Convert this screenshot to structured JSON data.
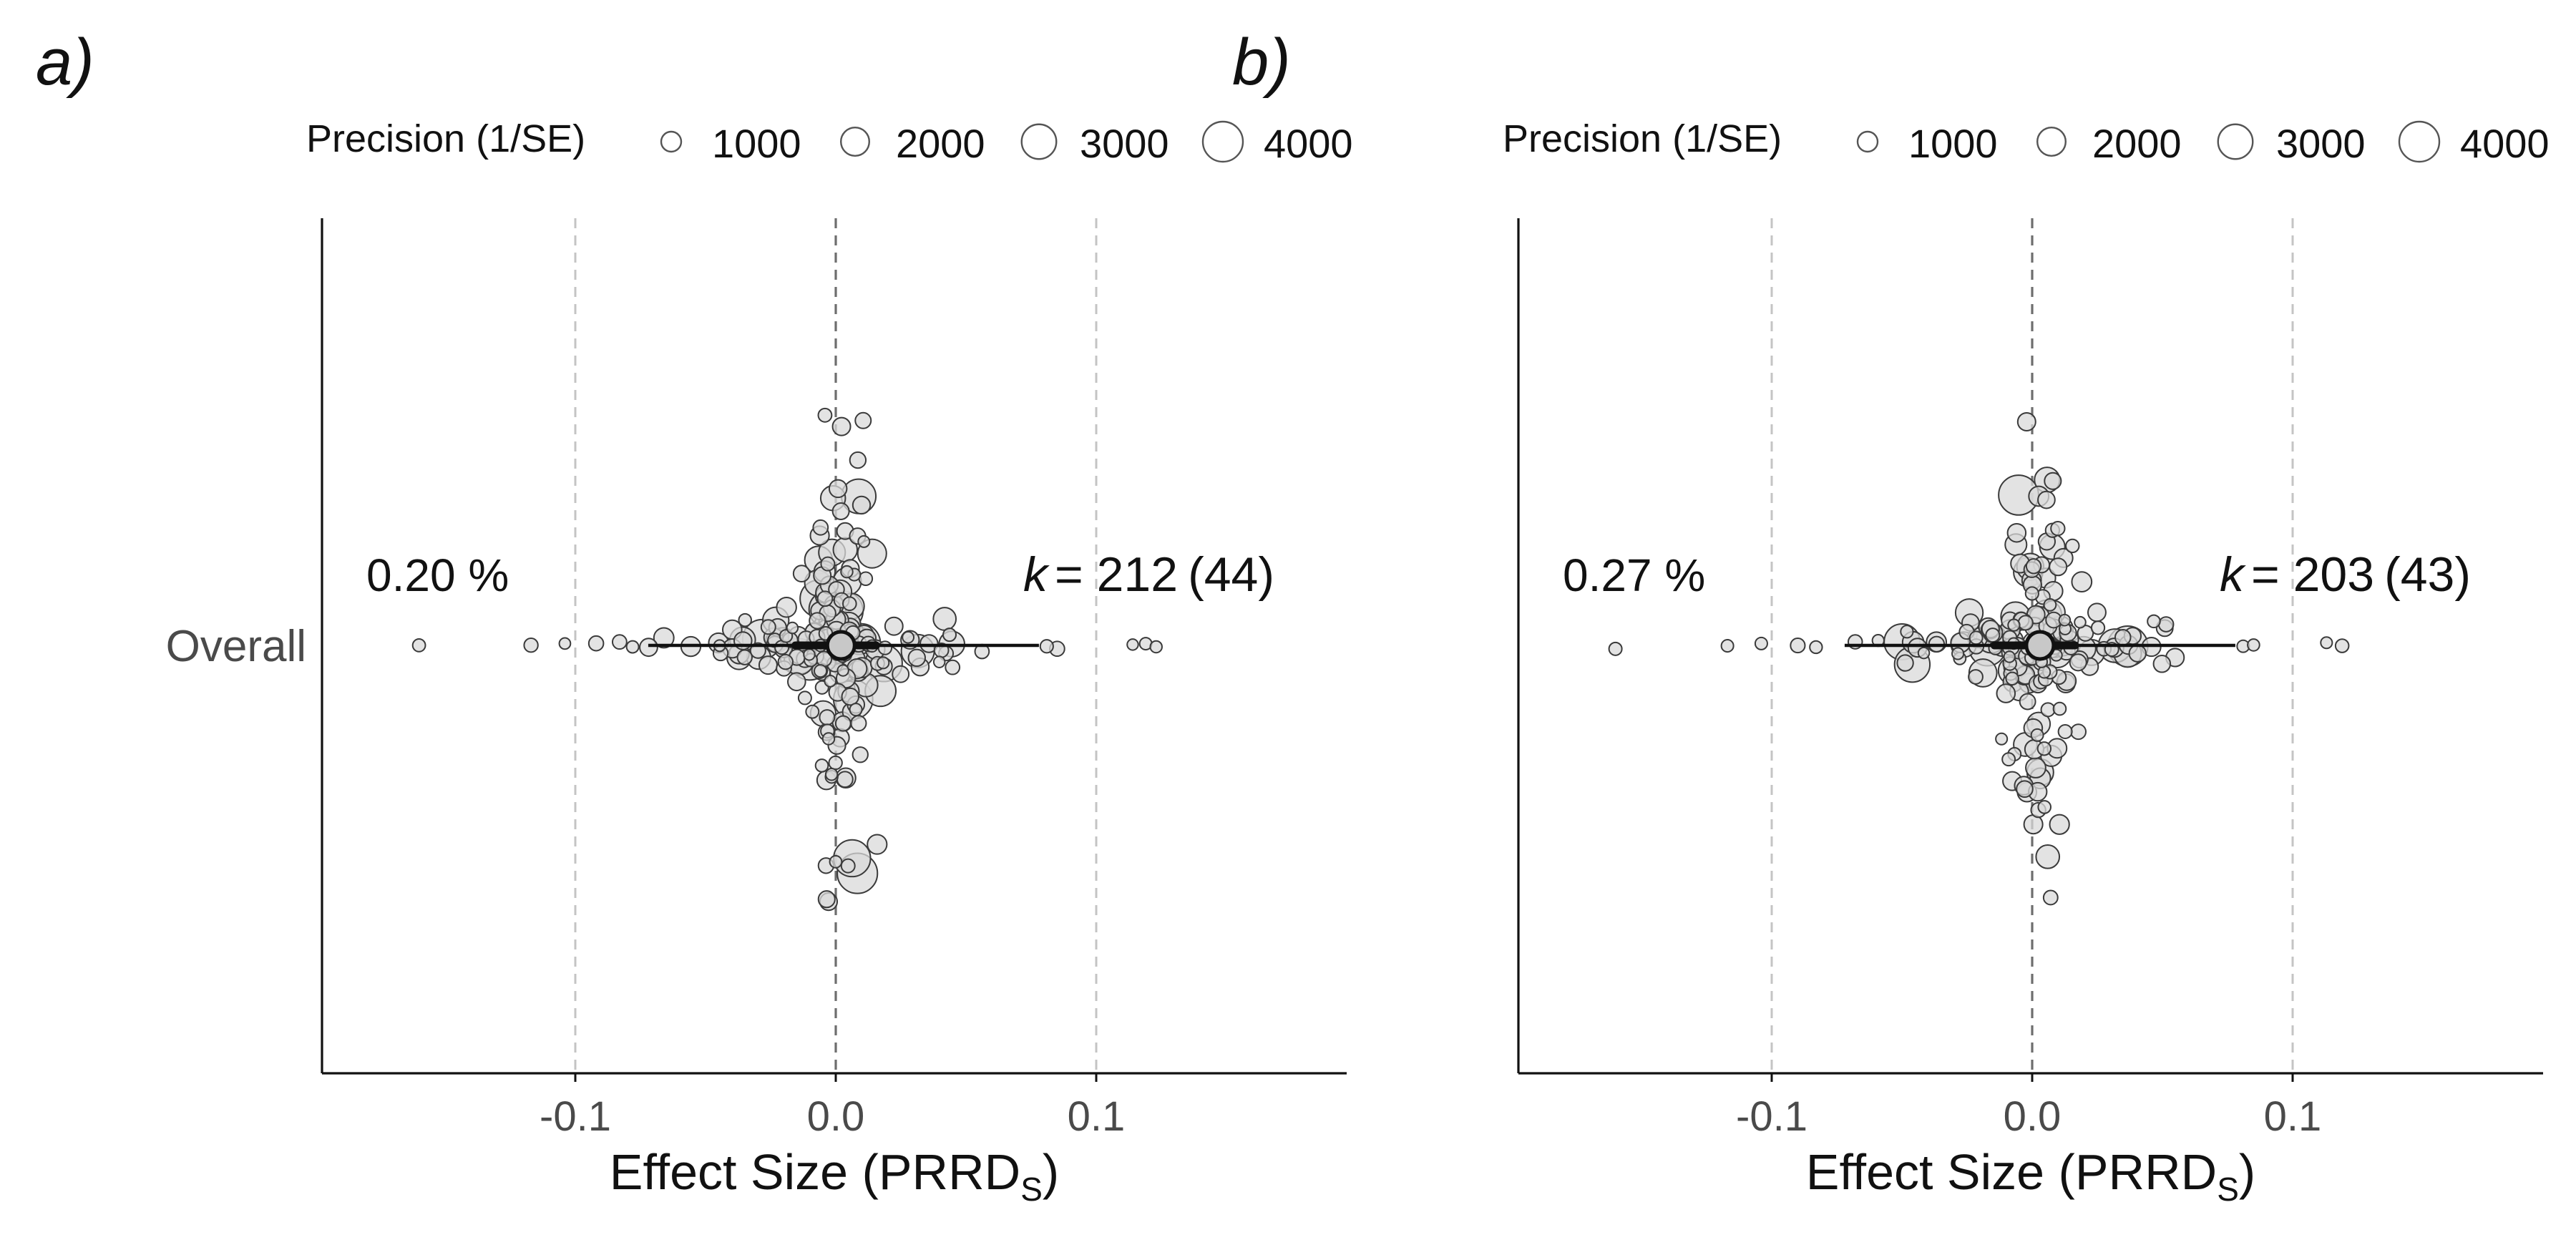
{
  "chart_data": [
    {
      "type": "scatter",
      "subtype": "orchard plot",
      "panel_label": "a)",
      "legend": {
        "title": "Precision (1/SE)",
        "placement": "top",
        "sizes": [
          1000,
          2000,
          3000,
          4000
        ],
        "labels": [
          "1000",
          "2000",
          "3000",
          "4000"
        ]
      },
      "category": "Overall",
      "xlabel_main": "Effect Size (PRRD",
      "xlabel_sub": "S",
      "xlabel_close": ")",
      "xlim": [
        -0.19,
        0.19
      ],
      "xticks": [
        -0.1,
        0.0,
        0.1
      ],
      "xtick_labels": [
        "-0.1",
        "0.0",
        "0.1"
      ],
      "reference_lines": [
        -0.1,
        0.0,
        0.1
      ],
      "percent_label": "0.20 %",
      "k_label": "k",
      "k_value": "= 212",
      "k_groups": "(44)",
      "estimate": 0.002,
      "confidence_interval": [
        -0.01,
        0.01
      ],
      "prediction_interval": [
        -0.072,
        0.078
      ],
      "outlier_points": [
        -0.16,
        -0.117,
        -0.104,
        -0.092,
        -0.083,
        -0.078,
        0.081,
        0.085,
        0.114,
        0.119,
        0.123
      ],
      "bubble_counts": {
        "total": 212,
        "max_precision": 4000
      },
      "colors": {
        "bubble_fill": "#d9d9d9",
        "bubble_stroke": "#3a3a3a",
        "estimate_fill": "#c8c8c8",
        "zero_line": "#6e6e6e",
        "ref_line": "#c4c4c4"
      }
    },
    {
      "type": "scatter",
      "subtype": "orchard plot",
      "panel_label": "b)",
      "legend": {
        "title": "Precision (1/SE)",
        "placement": "top",
        "sizes": [
          1000,
          2000,
          3000,
          4000
        ],
        "labels": [
          "1000",
          "2000",
          "3000",
          "4000"
        ]
      },
      "category": "",
      "xlabel_main": "Effect Size (PRRD",
      "xlabel_sub": "S",
      "xlabel_close": ")",
      "xlim": [
        -0.19,
        0.19
      ],
      "xticks": [
        -0.1,
        0.0,
        0.1
      ],
      "xtick_labels": [
        "-0.1",
        "0.0",
        "0.1"
      ],
      "reference_lines": [
        -0.1,
        0.0,
        0.1
      ],
      "percent_label": "0.27 %",
      "k_label": "k",
      "k_value": "= 203",
      "k_groups": "(43)",
      "estimate": 0.003,
      "confidence_interval": [
        -0.009,
        0.011
      ],
      "prediction_interval": [
        -0.072,
        0.078
      ],
      "outlier_points": [
        -0.16,
        -0.117,
        -0.104,
        -0.09,
        -0.083,
        0.081,
        0.085,
        0.113,
        0.119
      ],
      "bubble_counts": {
        "total": 203,
        "max_precision": 4000
      },
      "colors": {
        "bubble_fill": "#d9d9d9",
        "bubble_stroke": "#3a3a3a",
        "estimate_fill": "#c8c8c8",
        "zero_line": "#6e6e6e",
        "ref_line": "#c4c4c4"
      }
    }
  ]
}
